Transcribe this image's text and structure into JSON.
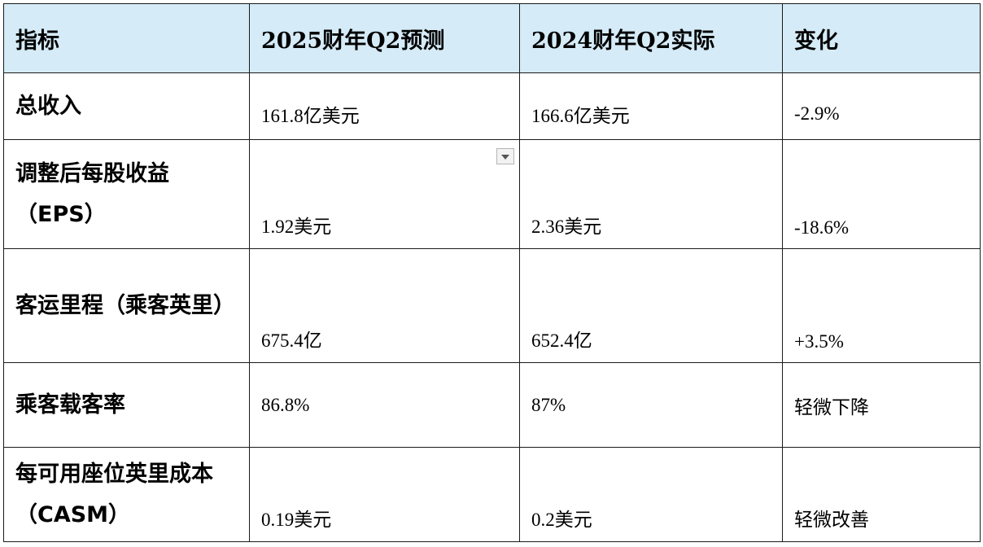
{
  "table": {
    "headers": [
      "指标",
      "2025财年Q2预测",
      "2024财年Q2实际",
      "变化"
    ],
    "rows": [
      {
        "metric": "总收入",
        "forecast": "161.8亿美元",
        "actual": "166.6亿美元",
        "change": "-2.9%"
      },
      {
        "metric": "调整后每股收益（EPS）",
        "forecast": "1.92美元",
        "actual": "2.36美元",
        "change": "-18.6%"
      },
      {
        "metric": "客运里程（乘客英里）",
        "forecast": "675.4亿",
        "actual": "652.4亿",
        "change": "+3.5%"
      },
      {
        "metric": "乘客载客率",
        "forecast": "86.8%",
        "actual": "87%",
        "change": "轻微下降"
      },
      {
        "metric": "每可用座位英里成本（CASM）",
        "forecast": "0.19美元",
        "actual": "0.2美元",
        "change": "轻微改善"
      }
    ]
  },
  "icons": {
    "dropdown": "dropdown-arrow-icon"
  }
}
